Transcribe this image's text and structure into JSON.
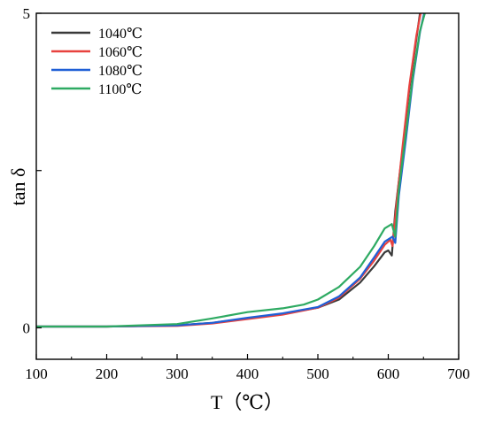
{
  "chart_data": {
    "type": "line",
    "title": "",
    "xlabel": "T（℃）",
    "ylabel": "tan δ",
    "xlim": [
      100,
      700
    ],
    "ylim": [
      -0.5,
      5
    ],
    "x_ticks": [
      100,
      200,
      300,
      400,
      500,
      600,
      700
    ],
    "x_tick_labels": [
      "100",
      "200",
      "300",
      "400",
      "500",
      "600",
      "700"
    ],
    "y_ticks": [
      0,
      2.5,
      5
    ],
    "y_tick_labels": [
      "0",
      "",
      "5"
    ],
    "grid": false,
    "legend_position": "top-left",
    "series": [
      {
        "name": "1040℃",
        "color": "#3a3a3a",
        "points": [
          [
            100,
            0.02
          ],
          [
            200,
            0.02
          ],
          [
            300,
            0.04
          ],
          [
            350,
            0.08
          ],
          [
            400,
            0.15
          ],
          [
            450,
            0.22
          ],
          [
            500,
            0.32
          ],
          [
            530,
            0.45
          ],
          [
            560,
            0.72
          ],
          [
            580,
            0.98
          ],
          [
            595,
            1.2
          ],
          [
            600,
            1.23
          ],
          [
            605,
            1.15
          ],
          [
            610,
            1.85
          ],
          [
            620,
            2.8
          ],
          [
            630,
            3.8
          ],
          [
            640,
            4.6
          ],
          [
            645,
            5.0
          ]
        ]
      },
      {
        "name": "1060℃",
        "color": "#e8423f",
        "points": [
          [
            100,
            0.02
          ],
          [
            200,
            0.02
          ],
          [
            300,
            0.03
          ],
          [
            350,
            0.07
          ],
          [
            400,
            0.14
          ],
          [
            450,
            0.21
          ],
          [
            500,
            0.32
          ],
          [
            530,
            0.48
          ],
          [
            560,
            0.78
          ],
          [
            580,
            1.07
          ],
          [
            595,
            1.32
          ],
          [
            603,
            1.4
          ],
          [
            606,
            1.3
          ],
          [
            612,
            2.0
          ],
          [
            620,
            2.85
          ],
          [
            630,
            3.85
          ],
          [
            640,
            4.65
          ],
          [
            646,
            5.0
          ]
        ]
      },
      {
        "name": "1080℃",
        "color": "#1f5fd6",
        "points": [
          [
            100,
            0.02
          ],
          [
            200,
            0.02
          ],
          [
            300,
            0.04
          ],
          [
            350,
            0.08
          ],
          [
            400,
            0.16
          ],
          [
            450,
            0.23
          ],
          [
            500,
            0.33
          ],
          [
            530,
            0.5
          ],
          [
            560,
            0.8
          ],
          [
            580,
            1.12
          ],
          [
            595,
            1.37
          ],
          [
            606,
            1.45
          ],
          [
            610,
            1.35
          ],
          [
            615,
            2.1
          ],
          [
            625,
            3.0
          ],
          [
            635,
            3.95
          ],
          [
            645,
            4.7
          ],
          [
            651,
            5.0
          ]
        ]
      },
      {
        "name": "1100℃",
        "color": "#2eaa62",
        "points": [
          [
            100,
            0.02
          ],
          [
            200,
            0.02
          ],
          [
            300,
            0.06
          ],
          [
            350,
            0.15
          ],
          [
            400,
            0.25
          ],
          [
            450,
            0.31
          ],
          [
            480,
            0.37
          ],
          [
            500,
            0.45
          ],
          [
            530,
            0.65
          ],
          [
            560,
            0.97
          ],
          [
            580,
            1.3
          ],
          [
            595,
            1.58
          ],
          [
            605,
            1.65
          ],
          [
            610,
            1.45
          ],
          [
            615,
            2.2
          ],
          [
            625,
            3.1
          ],
          [
            635,
            4.0
          ],
          [
            645,
            4.72
          ],
          [
            652,
            5.0
          ]
        ]
      }
    ]
  }
}
